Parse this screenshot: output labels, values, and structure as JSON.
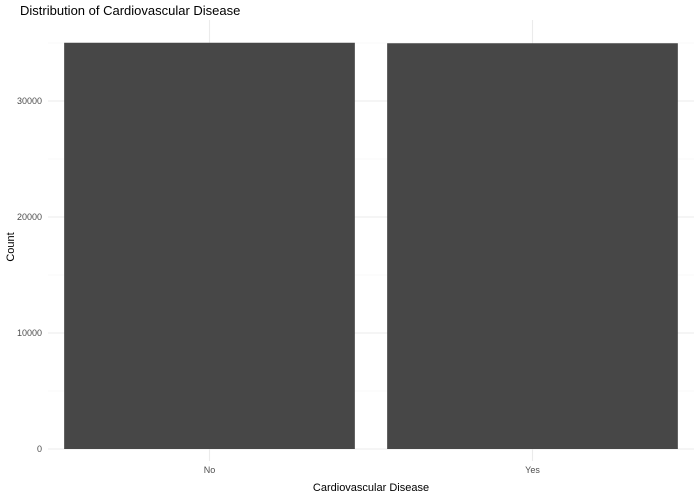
{
  "chart_data": {
    "type": "bar",
    "title": "Distribution of Cardiovascular Disease",
    "xlabel": "Cardiovascular Disease",
    "ylabel": "Count",
    "categories": [
      "No",
      "Yes"
    ],
    "values": [
      35021,
      34979
    ],
    "ylim": [
      0,
      36500
    ],
    "yticks": [
      0,
      10000,
      20000,
      30000
    ],
    "ytick_labels": [
      "0",
      "10000",
      "20000",
      "30000"
    ],
    "grid": true,
    "legend": "none",
    "colors": {
      "bar": "#474747",
      "grid_major": "#ebebeb",
      "grid_minor": "#f5f5f5",
      "tick_text": "#4d4d4d"
    }
  }
}
